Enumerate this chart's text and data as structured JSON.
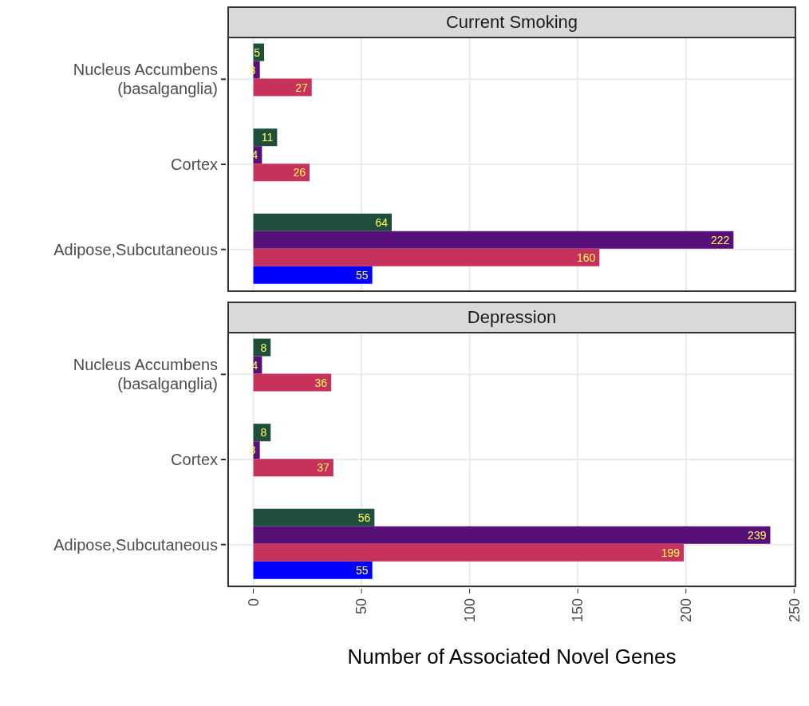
{
  "chart_data": [
    {
      "type": "bar",
      "orientation": "horizontal",
      "title": "Current Smoking",
      "categories": [
        "Nucleus Accumbens (basalganglia)",
        "Cortex",
        "Adipose,Subcutaneous"
      ],
      "series": [
        {
          "color": "#1f4e3d",
          "values": [
            5,
            11,
            64
          ]
        },
        {
          "color": "#561078",
          "values": [
            3,
            4,
            222
          ]
        },
        {
          "color": "#c7325c",
          "values": [
            27,
            26,
            160
          ]
        },
        {
          "color": "#0000ff",
          "values": [
            null,
            null,
            55
          ]
        }
      ],
      "xlim": [
        -12,
        251
      ],
      "xticks": [
        0,
        50,
        100,
        150,
        200,
        250
      ],
      "grid": true,
      "data_labels": true,
      "tick_labels": "y"
    },
    {
      "type": "bar",
      "orientation": "horizontal",
      "title": "Depression",
      "xlabel": "Number of Associated Novel Genes",
      "categories": [
        "Nucleus Accumbens (basalganglia)",
        "Cortex",
        "Adipose,Subcutaneous"
      ],
      "series": [
        {
          "color": "#1f4e3d",
          "values": [
            8,
            8,
            56
          ]
        },
        {
          "color": "#561078",
          "values": [
            4,
            3,
            239
          ]
        },
        {
          "color": "#c7325c",
          "values": [
            36,
            37,
            199
          ]
        },
        {
          "color": "#0000ff",
          "values": [
            null,
            null,
            55
          ]
        }
      ],
      "xlim": [
        -12,
        251
      ],
      "xticks": [
        0,
        50,
        100,
        150,
        200,
        250
      ],
      "grid": true,
      "data_labels": true
    }
  ]
}
